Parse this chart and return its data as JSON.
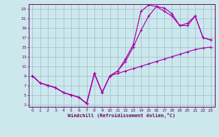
{
  "xlabel": "Windchill (Refroidissement éolien,°C)",
  "bg_color": "#cce8ec",
  "line_color": "#aa00aa",
  "grid_color": "#99bbcc",
  "xlim": [
    -0.5,
    23.5
  ],
  "ylim": [
    2.5,
    24.0
  ],
  "xticks": [
    0,
    1,
    2,
    3,
    4,
    5,
    6,
    7,
    8,
    9,
    10,
    11,
    12,
    13,
    14,
    15,
    16,
    17,
    18,
    19,
    20,
    21,
    22,
    23
  ],
  "yticks": [
    3,
    5,
    7,
    9,
    11,
    13,
    15,
    17,
    19,
    21,
    23
  ],
  "line1_x": [
    0,
    1,
    2,
    3,
    4,
    5,
    6,
    7,
    8,
    9,
    10,
    11,
    12,
    13,
    14,
    15,
    16,
    17,
    18,
    19,
    20,
    21,
    22,
    23
  ],
  "line1_y": [
    9,
    7.5,
    7,
    6.5,
    5.5,
    5,
    4.5,
    3.2,
    9.5,
    5.5,
    9,
    9.5,
    10,
    10.5,
    11,
    11.5,
    12,
    12.5,
    13,
    13.5,
    14,
    14.5,
    14.8,
    15
  ],
  "line2_x": [
    0,
    1,
    2,
    3,
    4,
    5,
    6,
    7,
    8,
    9,
    10,
    11,
    12,
    13,
    14,
    15,
    16,
    17,
    18,
    19,
    20,
    21,
    22,
    23
  ],
  "line2_y": [
    9,
    7.5,
    7,
    6.5,
    5.5,
    5,
    4.5,
    3.2,
    9.5,
    5.5,
    9,
    10,
    12,
    15,
    18.5,
    21.5,
    23.5,
    22.5,
    21.5,
    19.5,
    20,
    21.5,
    17,
    16.5
  ],
  "line3_x": [
    0,
    1,
    2,
    3,
    4,
    5,
    6,
    7,
    8,
    9,
    10,
    11,
    12,
    13,
    14,
    15,
    16,
    17,
    18,
    19,
    20,
    21,
    22,
    23
  ],
  "line3_y": [
    9,
    7.5,
    7,
    6.5,
    5.5,
    5,
    4.5,
    3.2,
    9.5,
    5.5,
    9,
    10,
    12.5,
    15.5,
    22.5,
    23.8,
    23.5,
    23.2,
    22.0,
    19.5,
    19.5,
    21.5,
    17,
    16.5
  ],
  "markersize": 3,
  "linewidth": 0.9
}
